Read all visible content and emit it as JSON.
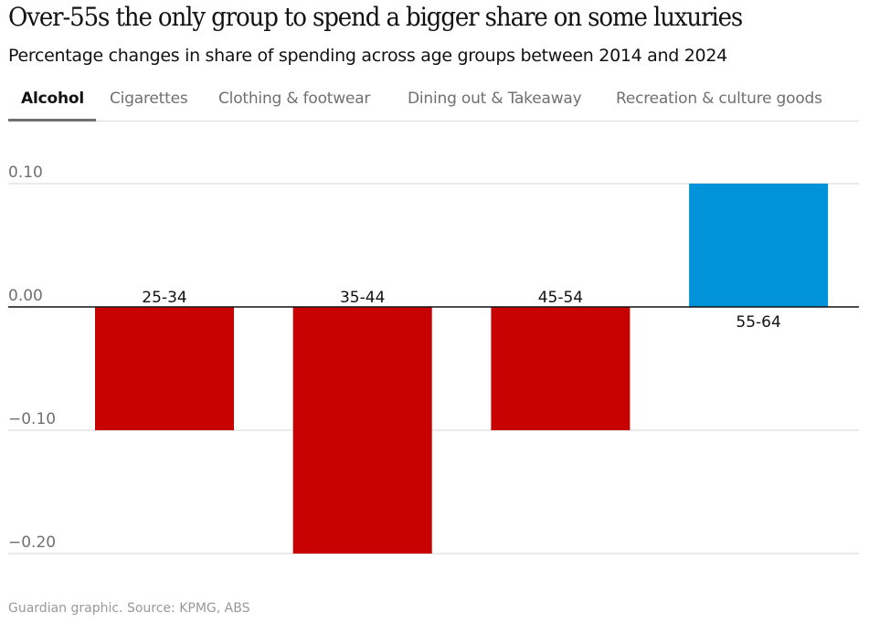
{
  "header": {
    "title": "Over-55s the only group to spend a bigger share on some luxuries",
    "subtitle": "Percentage changes in share of spending across age groups between 2014 and 2024"
  },
  "tabs": [
    {
      "label": "Alcohol",
      "active": true
    },
    {
      "label": "Cigarettes",
      "active": false
    },
    {
      "label": "Clothing & footwear",
      "active": false
    },
    {
      "label": "Dining out & Takeaway",
      "active": false
    },
    {
      "label": "Recreation & culture goods",
      "active": false
    }
  ],
  "colors": {
    "negative": "#c70000",
    "positive": "#0093d9",
    "gridline": "#d4d4d4",
    "zeroline": "#121212",
    "tick_text": "#707070"
  },
  "chart_data": {
    "type": "bar",
    "title": "Over-55s the only group to spend a bigger share on some luxuries",
    "subtitle": "Percentage changes in share of spending across age groups between 2014 and 2024",
    "selected_category": "Alcohol",
    "categories": [
      "25-34",
      "35-44",
      "45-54",
      "55-64"
    ],
    "values": [
      -0.1,
      -0.2,
      -0.1,
      0.1
    ],
    "xlabel": "",
    "ylabel": "",
    "ylim": [
      -0.2,
      0.1
    ],
    "yticks": [
      0.1,
      0.0,
      -0.1,
      -0.2
    ],
    "ytick_labels": [
      "0.10",
      "0.00",
      "−0.10",
      "−0.20"
    ],
    "grid": true,
    "legend": "none"
  },
  "footer": {
    "source": "Guardian graphic. Source: KPMG, ABS"
  }
}
